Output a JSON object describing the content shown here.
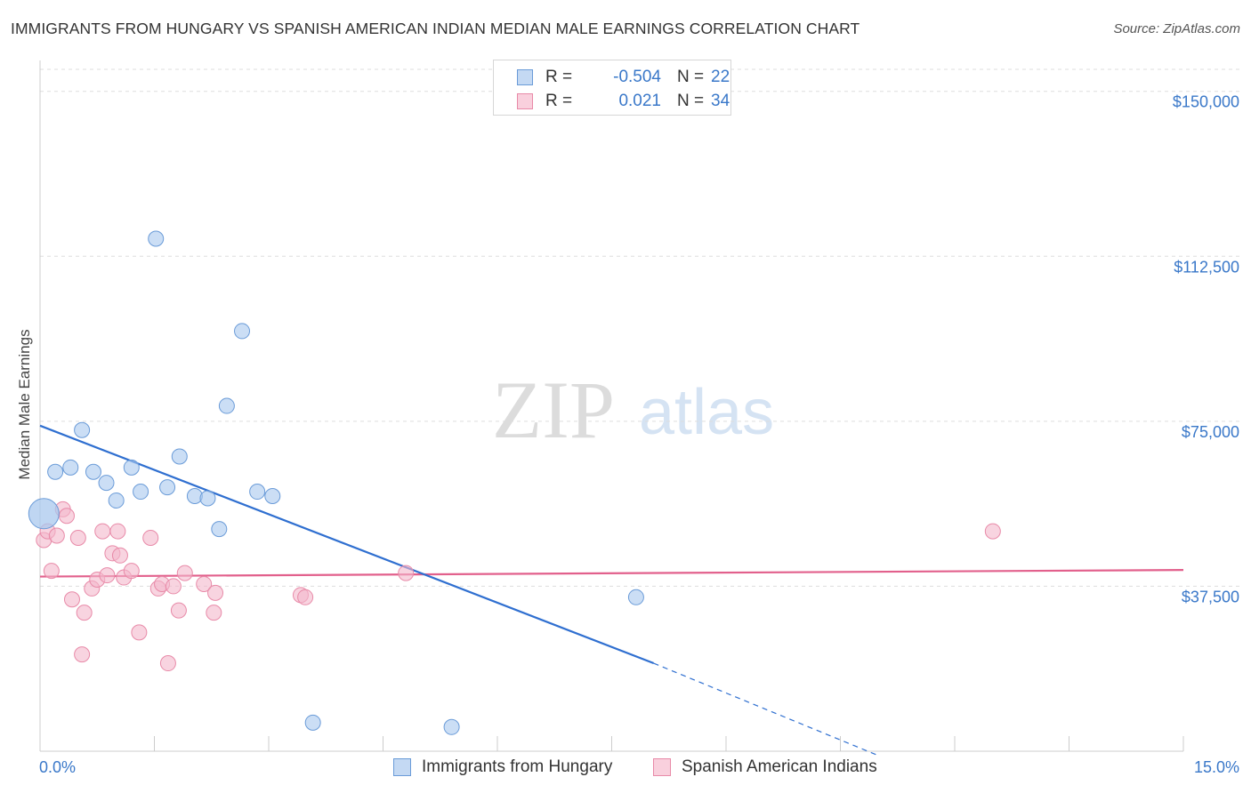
{
  "header": {
    "title": "IMMIGRANTS FROM HUNGARY VS SPANISH AMERICAN INDIAN MEDIAN MALE EARNINGS CORRELATION CHART",
    "source": "Source: ZipAtlas.com"
  },
  "watermark": {
    "zip": "ZIP",
    "atlas": "atlas"
  },
  "legend": {
    "rows": [
      {
        "r_label": "R =",
        "r_value": "-0.504",
        "n_label": "N =",
        "n_value": "22"
      },
      {
        "r_label": "R =",
        "r_value": "0.021",
        "n_label": "N =",
        "n_value": "34"
      }
    ]
  },
  "colors": {
    "blue_fill": "#a9c8ee",
    "blue_stroke": "#6a9bd8",
    "blue_line": "#2f6fd0",
    "pink_fill": "#f4b8cb",
    "pink_stroke": "#e88aa8",
    "pink_line": "#e2608c",
    "tick_text": "#3a78c9",
    "grid": "#dddddd"
  },
  "chart_data": {
    "type": "scatter",
    "title": "IMMIGRANTS FROM HUNGARY VS SPANISH AMERICAN INDIAN MEDIAN MALE EARNINGS CORRELATION CHART",
    "xlabel": "",
    "ylabel": "Median Male Earnings",
    "xlim": [
      0,
      15
    ],
    "ylim": [
      0,
      155000
    ],
    "x_tick_labels": [
      "0.0%",
      "15.0%"
    ],
    "y_ticks": [
      {
        "value": 37500,
        "label": "$37,500"
      },
      {
        "value": 75000,
        "label": "$75,000"
      },
      {
        "value": 112500,
        "label": "$112,500"
      },
      {
        "value": 150000,
        "label": "$150,000"
      }
    ],
    "grid": "horizontal dashed",
    "series": [
      {
        "name": "Immigrants from Hungary",
        "color": "#a9c8ee",
        "points": [
          [
            0.05,
            54000
          ],
          [
            0.2,
            63500
          ],
          [
            0.4,
            64500
          ],
          [
            0.55,
            73000
          ],
          [
            0.7,
            63500
          ],
          [
            0.87,
            61000
          ],
          [
            1.0,
            57000
          ],
          [
            1.2,
            64500
          ],
          [
            1.32,
            59000
          ],
          [
            1.52,
            116500
          ],
          [
            1.67,
            60000
          ],
          [
            1.83,
            67000
          ],
          [
            2.03,
            58000
          ],
          [
            2.2,
            57500
          ],
          [
            2.35,
            50500
          ],
          [
            2.45,
            78500
          ],
          [
            2.65,
            95500
          ],
          [
            2.85,
            59000
          ],
          [
            3.05,
            58000
          ],
          [
            3.58,
            6500
          ],
          [
            5.4,
            5500
          ],
          [
            7.82,
            35000
          ]
        ]
      },
      {
        "name": "Spanish American Indians",
        "color": "#f4b8cb",
        "points": [
          [
            0.05,
            48000
          ],
          [
            0.1,
            50000
          ],
          [
            0.15,
            41000
          ],
          [
            0.22,
            49000
          ],
          [
            0.3,
            55000
          ],
          [
            0.35,
            53500
          ],
          [
            0.42,
            34500
          ],
          [
            0.5,
            48500
          ],
          [
            0.58,
            31500
          ],
          [
            0.55,
            22000
          ],
          [
            0.68,
            37000
          ],
          [
            0.75,
            39000
          ],
          [
            0.82,
            50000
          ],
          [
            0.88,
            40000
          ],
          [
            0.95,
            45000
          ],
          [
            1.02,
            50000
          ],
          [
            1.05,
            44500
          ],
          [
            1.1,
            39500
          ],
          [
            1.2,
            41000
          ],
          [
            1.3,
            27000
          ],
          [
            1.45,
            48500
          ],
          [
            1.55,
            37000
          ],
          [
            1.6,
            38000
          ],
          [
            1.68,
            20000
          ],
          [
            1.75,
            37500
          ],
          [
            1.82,
            32000
          ],
          [
            1.9,
            40500
          ],
          [
            2.15,
            38000
          ],
          [
            2.3,
            36000
          ],
          [
            2.28,
            31500
          ],
          [
            3.42,
            35500
          ],
          [
            3.48,
            35000
          ],
          [
            4.8,
            40500
          ],
          [
            12.5,
            50000
          ]
        ]
      }
    ],
    "trendlines": [
      {
        "series": "Immigrants from Hungary",
        "solid": [
          [
            0,
            74000
          ],
          [
            8.05,
            20000
          ]
        ],
        "dashed": [
          [
            8.05,
            20000
          ],
          [
            11.0,
            -1000
          ]
        ]
      },
      {
        "series": "Spanish American Indians",
        "solid": [
          [
            0,
            39700
          ],
          [
            15,
            41200
          ]
        ]
      }
    ]
  }
}
